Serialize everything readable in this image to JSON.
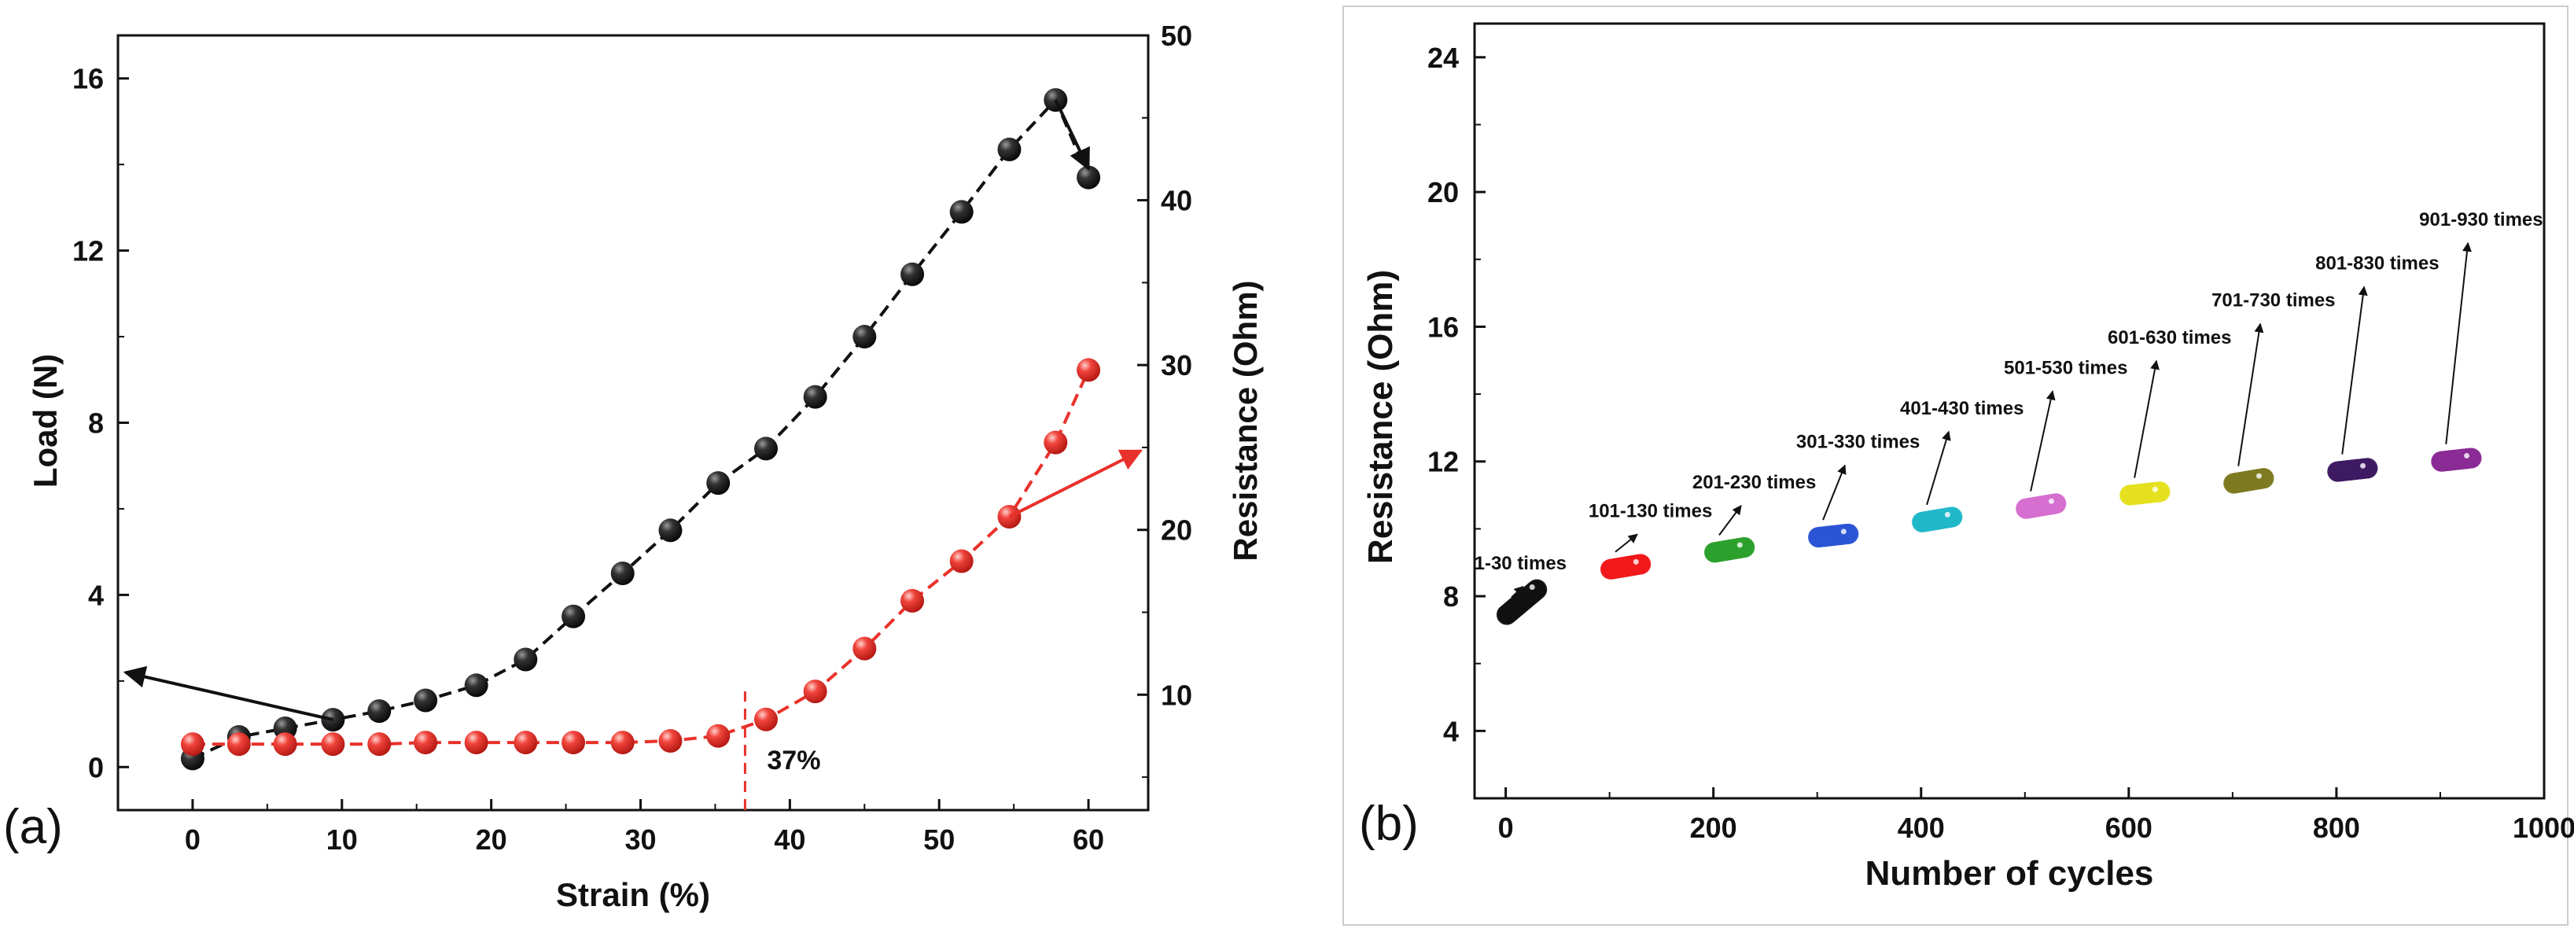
{
  "chart_data": [
    {
      "panel_label": "(a)",
      "type": "line",
      "xlabel": "Strain (%)",
      "ylabel_left": "Load (N)",
      "ylabel_right": "Resistance (Ohm)",
      "xlim": [
        -5,
        64
      ],
      "ylim_left": [
        -1,
        17
      ],
      "ylim_right": [
        3,
        50
      ],
      "xticks": [
        "0",
        "10",
        "20",
        "30",
        "40",
        "50",
        "60"
      ],
      "yticks_left": [
        "0",
        "4",
        "8",
        "12",
        "16"
      ],
      "yticks_right": [
        "10",
        "20",
        "30",
        "40",
        "50"
      ],
      "annotation": "37%",
      "annotation_x": 37,
      "series": [
        {
          "name": "Load",
          "axis": "left",
          "color": "#111111",
          "x": [
            0,
            3.1,
            6.2,
            9.4,
            12.5,
            15.6,
            19.0,
            22.3,
            25.5,
            28.8,
            32.0,
            35.2,
            38.4,
            41.7,
            45.0,
            48.2,
            51.5,
            54.7,
            57.8,
            60.0
          ],
          "y": [
            0.2,
            0.7,
            0.9,
            1.1,
            1.3,
            1.55,
            1.9,
            2.5,
            3.5,
            4.5,
            5.5,
            6.6,
            7.4,
            8.6,
            10.0,
            11.45,
            12.9,
            14.35,
            15.5,
            13.7
          ]
        },
        {
          "name": "Resistance",
          "axis": "right",
          "color": "#e8312a",
          "x": [
            0,
            3.1,
            6.2,
            9.4,
            12.5,
            15.6,
            19.0,
            22.3,
            25.5,
            28.8,
            32.0,
            35.2,
            38.4,
            41.7,
            45.0,
            48.2,
            51.5,
            54.7,
            57.8,
            60.0
          ],
          "y": [
            7.0,
            7.0,
            7.0,
            7.0,
            7.0,
            7.1,
            7.1,
            7.1,
            7.1,
            7.1,
            7.2,
            7.5,
            8.5,
            10.2,
            12.8,
            15.7,
            18.1,
            20.8,
            25.3,
            29.7
          ]
        }
      ]
    },
    {
      "panel_label": "(b)",
      "type": "scatter",
      "xlabel": "Number of cycles",
      "ylabel": "Resistance (Ohm)",
      "xlim": [
        -30,
        1000
      ],
      "ylim": [
        2,
        25
      ],
      "xticks": [
        "0",
        "200",
        "400",
        "600",
        "800",
        "1000"
      ],
      "yticks": [
        "4",
        "8",
        "12",
        "16",
        "20",
        "24"
      ],
      "series": [
        {
          "name": "1-30 times",
          "color": "#111111",
          "x_start": 1,
          "x_end": 30,
          "y_start": 7.45,
          "y_end": 8.2,
          "label_x": 0,
          "label_y": 8.8
        },
        {
          "name": "101-130 times",
          "color": "#f0181b",
          "x_start": 101,
          "x_end": 130,
          "y_start": 8.8,
          "y_end": 8.95,
          "label_x": 110,
          "label_y": 10.35
        },
        {
          "name": "201-230 times",
          "color": "#2ca02c",
          "x_start": 201,
          "x_end": 230,
          "y_start": 9.3,
          "y_end": 9.45,
          "label_x": 210,
          "label_y": 11.2
        },
        {
          "name": "301-330 times",
          "color": "#2b55d4",
          "x_start": 301,
          "x_end": 330,
          "y_start": 9.75,
          "y_end": 9.85,
          "label_x": 310,
          "label_y": 12.4
        },
        {
          "name": "401-430 times",
          "color": "#22b8c9",
          "x_start": 401,
          "x_end": 430,
          "y_start": 10.2,
          "y_end": 10.35,
          "label_x": 410,
          "label_y": 13.4
        },
        {
          "name": "501-530 times",
          "color": "#d66fd0",
          "x_start": 501,
          "x_end": 530,
          "y_start": 10.6,
          "y_end": 10.75,
          "label_x": 510,
          "label_y": 14.6
        },
        {
          "name": "601-630 times",
          "color": "#e5e01f",
          "x_start": 601,
          "x_end": 630,
          "y_start": 11.0,
          "y_end": 11.1,
          "label_x": 610,
          "label_y": 15.5
        },
        {
          "name": "701-730 times",
          "color": "#7d7a22",
          "x_start": 701,
          "x_end": 730,
          "y_start": 11.35,
          "y_end": 11.5,
          "label_x": 710,
          "label_y": 16.6
        },
        {
          "name": "801-830 times",
          "color": "#3e1a63",
          "x_start": 801,
          "x_end": 830,
          "y_start": 11.7,
          "y_end": 11.8,
          "label_x": 810,
          "label_y": 17.7
        },
        {
          "name": "901-930 times",
          "color": "#8b2b96",
          "x_start": 901,
          "x_end": 930,
          "y_start": 12.0,
          "y_end": 12.1,
          "label_x": 910,
          "label_y": 19.0
        }
      ]
    }
  ]
}
